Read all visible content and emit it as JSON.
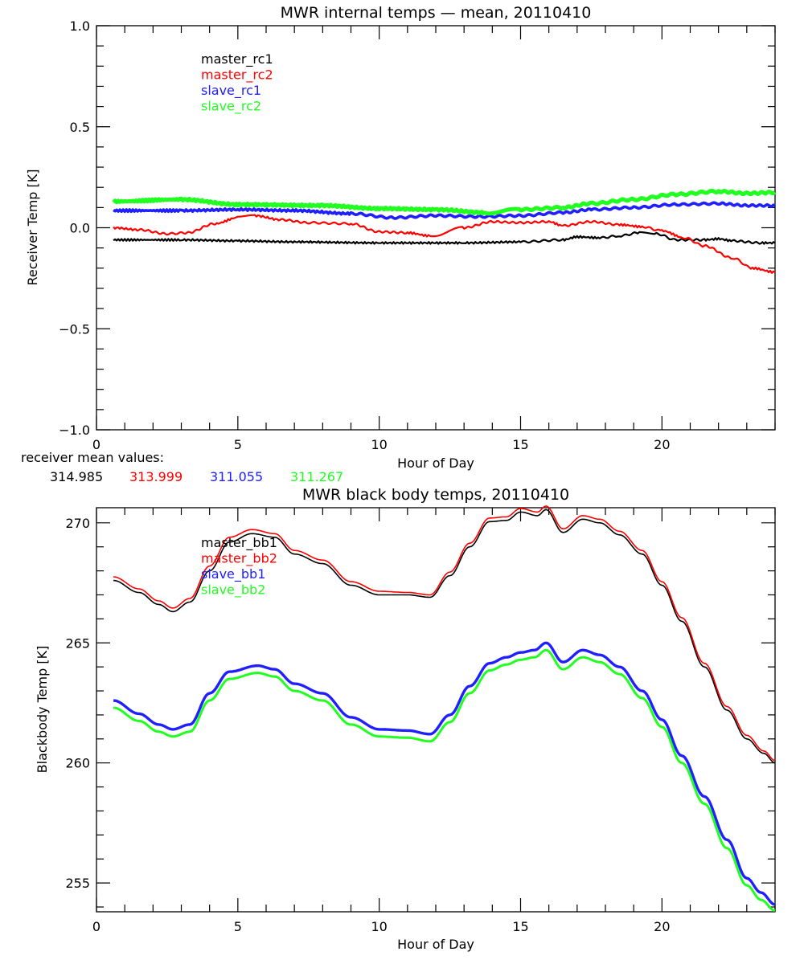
{
  "chart_data": [
    {
      "type": "line",
      "title": "MWR internal temps — mean, 20110410",
      "xlabel": "Hour of Day",
      "ylabel": "Receiver Temp [K]",
      "xlim": [
        0,
        24
      ],
      "ylim": [
        -1.0,
        1.0
      ],
      "xticks": [
        0,
        5,
        10,
        15,
        20
      ],
      "xtick_labels": [
        "0",
        "5",
        "10",
        "15",
        "20"
      ],
      "yticks": [
        -1.0,
        -0.5,
        0.0,
        0.5,
        1.0
      ],
      "ytick_labels": [
        "−1.0",
        "−0.5",
        "0.0",
        "0.5",
        "1.0"
      ],
      "grid": false,
      "legend_position": "top-left",
      "series": [
        {
          "name": "master_rc1",
          "color": "#000000",
          "x": [
            0.6,
            3,
            5,
            7,
            10,
            13,
            15,
            16.5,
            17,
            17.8,
            18.5,
            19.2,
            19.8,
            20.5,
            21.5,
            22,
            22.5,
            23.5,
            24
          ],
          "y": [
            -0.06,
            -0.06,
            -0.065,
            -0.07,
            -0.075,
            -0.075,
            -0.07,
            -0.06,
            -0.045,
            -0.05,
            -0.04,
            -0.025,
            -0.03,
            -0.06,
            -0.06,
            -0.055,
            -0.065,
            -0.075,
            -0.075
          ]
        },
        {
          "name": "master_rc2",
          "color": "#ff0000",
          "x": [
            0.6,
            1.5,
            2.5,
            3.2,
            4.2,
            5.0,
            5.6,
            6.5,
            7.5,
            9.0,
            10.0,
            11.0,
            11.8,
            13.0,
            14.0,
            15.0,
            16.0,
            16.5,
            17.5,
            18.5,
            19.3,
            20.0,
            20.8,
            21.5,
            22.5,
            23.2,
            24.0
          ],
          "y": [
            0.0,
            -0.01,
            -0.03,
            -0.025,
            0.02,
            0.05,
            0.06,
            0.04,
            0.025,
            0.02,
            -0.02,
            -0.025,
            -0.04,
            0.0,
            0.03,
            0.025,
            0.03,
            0.01,
            0.03,
            0.015,
            0.005,
            -0.015,
            -0.05,
            -0.09,
            -0.15,
            -0.2,
            -0.22
          ]
        },
        {
          "name": "slave_rc1",
          "color": "#2020ff",
          "x": [
            0.6,
            3,
            5,
            7,
            9,
            10.5,
            12,
            13.5,
            15,
            16.5,
            17.5,
            19,
            20.5,
            22,
            23,
            24
          ],
          "y": [
            0.085,
            0.085,
            0.09,
            0.085,
            0.07,
            0.05,
            0.06,
            0.055,
            0.06,
            0.075,
            0.09,
            0.1,
            0.115,
            0.12,
            0.11,
            0.11
          ]
        },
        {
          "name": "slave_rc2",
          "color": "#20ff20",
          "x": [
            0.6,
            3,
            5,
            8,
            10,
            12,
            13.8,
            15,
            16.5,
            17.5,
            19,
            20.5,
            22,
            23,
            24
          ],
          "y": [
            0.13,
            0.14,
            0.115,
            0.11,
            0.095,
            0.09,
            0.075,
            0.09,
            0.1,
            0.12,
            0.14,
            0.165,
            0.18,
            0.17,
            0.175
          ]
        }
      ],
      "annotation": {
        "label": "receiver mean values:",
        "values": [
          {
            "text": "314.985",
            "color": "#000000"
          },
          {
            "text": "313.999",
            "color": "#ff0000"
          },
          {
            "text": "311.055",
            "color": "#2020ff"
          },
          {
            "text": "311.267",
            "color": "#20ff20"
          }
        ]
      }
    },
    {
      "type": "line",
      "title": "MWR black body temps, 20110410",
      "xlabel": "Hour of Day",
      "ylabel": "Blackbody Temp [K]",
      "xlim": [
        0,
        24
      ],
      "ylim": [
        253.8,
        270.63
      ],
      "xticks": [
        0,
        5,
        10,
        15,
        20
      ],
      "xtick_labels": [
        "0",
        "5",
        "10",
        "15",
        "20"
      ],
      "yticks": [
        255,
        260,
        265,
        270
      ],
      "ytick_labels": [
        "255",
        "260",
        "265",
        "270"
      ],
      "grid": false,
      "legend_position": "top-left",
      "series": [
        {
          "name": "master_bb1",
          "color": "#000000",
          "x": [
            0.6,
            1.5,
            2.2,
            2.7,
            3.3,
            4.0,
            4.7,
            5.5,
            6.3,
            7.0,
            8.0,
            9.0,
            10.0,
            11.0,
            11.8,
            12.5,
            13.2,
            13.9,
            14.5,
            15.0,
            15.6,
            15.9,
            16.5,
            17.2,
            17.8,
            18.5,
            19.3,
            20.0,
            20.7,
            21.5,
            22.3,
            23.0,
            23.6,
            24.0
          ],
          "y": [
            267.6,
            267.1,
            266.6,
            266.3,
            266.7,
            268.0,
            269.2,
            269.55,
            269.4,
            268.7,
            268.3,
            267.4,
            267.0,
            267.0,
            266.9,
            267.8,
            269.0,
            270.05,
            270.1,
            270.45,
            270.3,
            270.55,
            269.6,
            270.15,
            270.0,
            269.5,
            268.7,
            267.4,
            265.9,
            264.0,
            262.2,
            261.0,
            260.4,
            260.0
          ]
        },
        {
          "name": "master_bb2",
          "color": "#ff0000",
          "x": [
            0.6,
            1.5,
            2.2,
            2.7,
            3.3,
            4.0,
            4.7,
            5.5,
            6.3,
            7.0,
            8.0,
            9.0,
            10.0,
            11.0,
            11.8,
            12.5,
            13.2,
            13.9,
            14.5,
            15.0,
            15.6,
            15.9,
            16.5,
            17.2,
            17.8,
            18.5,
            19.3,
            20.0,
            20.7,
            21.5,
            22.3,
            23.0,
            23.6,
            24.0
          ],
          "y": [
            267.75,
            267.25,
            266.75,
            266.45,
            266.85,
            268.2,
            269.4,
            269.72,
            269.55,
            268.85,
            268.45,
            267.55,
            267.15,
            267.1,
            267.0,
            267.95,
            269.15,
            270.2,
            270.25,
            270.6,
            270.45,
            270.7,
            269.75,
            270.3,
            270.15,
            269.65,
            268.85,
            267.55,
            266.05,
            264.15,
            262.35,
            261.15,
            260.5,
            260.1
          ]
        },
        {
          "name": "slave_bb1",
          "color": "#2020ff",
          "x": [
            0.6,
            1.5,
            2.2,
            2.7,
            3.3,
            4.0,
            4.7,
            5.7,
            6.3,
            7.0,
            8.0,
            9.0,
            10.0,
            11.0,
            11.8,
            12.5,
            13.2,
            13.9,
            14.5,
            15.0,
            15.5,
            15.9,
            16.5,
            17.2,
            17.8,
            18.5,
            19.3,
            20.0,
            20.7,
            21.5,
            22.3,
            23.0,
            23.5,
            24.0
          ],
          "y": [
            262.6,
            262.05,
            261.6,
            261.4,
            261.6,
            262.9,
            263.8,
            264.05,
            263.9,
            263.3,
            262.9,
            261.9,
            261.4,
            261.35,
            261.2,
            262.0,
            263.2,
            264.15,
            264.4,
            264.6,
            264.7,
            265.0,
            264.2,
            264.7,
            264.5,
            264.0,
            263.0,
            261.8,
            260.3,
            258.6,
            256.8,
            255.2,
            254.6,
            254.1
          ]
        },
        {
          "name": "slave_bb2",
          "color": "#20ff20",
          "x": [
            0.6,
            1.5,
            2.2,
            2.7,
            3.3,
            4.0,
            4.7,
            5.7,
            6.3,
            7.0,
            8.0,
            9.0,
            10.0,
            11.0,
            11.8,
            12.5,
            13.2,
            13.9,
            14.5,
            15.0,
            15.5,
            15.9,
            16.5,
            17.2,
            17.8,
            18.5,
            19.3,
            20.0,
            20.7,
            21.5,
            22.3,
            23.0,
            23.5,
            24.0
          ],
          "y": [
            262.3,
            261.75,
            261.3,
            261.1,
            261.3,
            262.6,
            263.5,
            263.75,
            263.6,
            263.0,
            262.6,
            261.6,
            261.1,
            261.05,
            260.9,
            261.7,
            262.9,
            263.85,
            264.1,
            264.3,
            264.4,
            264.7,
            263.9,
            264.4,
            264.2,
            263.7,
            262.7,
            261.5,
            260.0,
            258.3,
            256.45,
            254.9,
            254.3,
            253.85
          ]
        }
      ]
    }
  ]
}
